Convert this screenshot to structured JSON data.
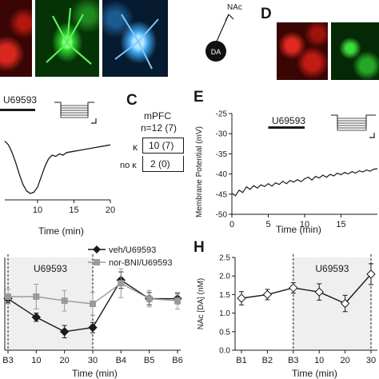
{
  "panels": {
    "C": "C",
    "D": "D",
    "E": "E",
    "H": "H"
  },
  "schematic": {
    "region": "NAc",
    "cell": "DA"
  },
  "panel_c": {
    "region": "mPFC",
    "n": "n=12 (7)",
    "rows": [
      {
        "label": "κ",
        "value": "10 (7)"
      },
      {
        "label": "no κ",
        "value": "2 (0)"
      }
    ]
  },
  "chart_data": [
    {
      "id": "panel-b-trace",
      "type": "line",
      "xlabel": "Time (min)",
      "ylabel": "",
      "x_ticks": [
        10,
        15,
        20
      ],
      "drug_label": "U69593",
      "drug_bar": [
        null,
        10
      ],
      "x": [
        5.5,
        6,
        6.5,
        7,
        7.5,
        8,
        8.5,
        9,
        9.5,
        10,
        10.5,
        11,
        11.5,
        12,
        12.5,
        13,
        13.5,
        14,
        15,
        16,
        17,
        18,
        19,
        20
      ],
      "y": [
        0,
        -0.3,
        -0.9,
        -1.7,
        -2.6,
        -3.4,
        -3.9,
        -4.1,
        -4.0,
        -3.6,
        -2.8,
        -2.0,
        -1.4,
        -1.1,
        -1.2,
        -1.0,
        -1.1,
        -0.9,
        -0.8,
        -0.7,
        -0.6,
        -0.5,
        -0.4,
        -0.3
      ]
    },
    {
      "id": "panel-e-trace",
      "type": "line",
      "xlabel": "Time (min)",
      "ylabel": "Membrane Potential (mV)",
      "xlim": [
        0,
        20
      ],
      "ylim": [
        -50,
        -25
      ],
      "x_ticks": [
        0,
        5,
        10,
        15
      ],
      "y_ticks": [
        -50,
        -45,
        -40,
        -35,
        -30,
        -25
      ],
      "drug_label": "U69593",
      "drug_bar": [
        5,
        10
      ],
      "x": [
        0,
        0.5,
        1,
        1.5,
        2,
        2.5,
        3,
        3.5,
        4,
        4.5,
        5,
        5.5,
        6,
        6.5,
        7,
        7.5,
        8,
        8.5,
        9,
        9.5,
        10,
        10.5,
        11,
        11.5,
        12,
        12.5,
        13,
        13.5,
        14,
        14.5,
        15,
        15.5,
        16,
        16.5,
        17,
        17.5,
        18,
        18.5,
        19,
        19.5,
        20
      ],
      "y": [
        -44.8,
        -45.4,
        -44.0,
        -44.6,
        -43.2,
        -43.8,
        -42.9,
        -43.5,
        -42.7,
        -43.1,
        -42.4,
        -43.0,
        -42.2,
        -42.6,
        -41.8,
        -42.4,
        -41.6,
        -42.0,
        -41.4,
        -41.9,
        -41.2,
        -40.8,
        -41.5,
        -40.6,
        -41.0,
        -40.3,
        -40.8,
        -40.1,
        -40.5,
        -39.8,
        -40.2,
        -39.6,
        -40.0,
        -39.4,
        -39.8,
        -39.2,
        -39.5,
        -39.0,
        -39.3,
        -38.8,
        -38.7
      ]
    },
    {
      "id": "panel-g",
      "type": "line",
      "xlabel": "Time (min)",
      "ylabel": "",
      "categories": [
        "B3",
        "10",
        "20",
        "30",
        "B4",
        "B5",
        "B6"
      ],
      "drug_label": "U69593",
      "shaded_range": [
        "B3",
        "30"
      ],
      "series": [
        {
          "name": "veh/U69593",
          "color": "#1a1a1a",
          "marker": "diamond",
          "values": [
            100,
            82,
            68,
            72,
            118,
            100,
            100
          ],
          "error": [
            4,
            4,
            6,
            5,
            8,
            6,
            5
          ]
        },
        {
          "name": "nor-BNI/U69593",
          "color": "#9a9a9a",
          "marker": "square",
          "values": [
            102,
            102,
            98,
            95,
            115,
            100,
            98
          ],
          "error": [
            7,
            12,
            10,
            11,
            14,
            8,
            8
          ]
        }
      ]
    },
    {
      "id": "panel-h",
      "type": "line",
      "xlabel": "Time (min)",
      "ylabel": "NAc [DA] (nM)",
      "ylim": [
        0,
        2.5
      ],
      "y_ticks": [
        0.0,
        0.5,
        1.0,
        1.5,
        2.0,
        2.5
      ],
      "y_tick_labels": [
        "0.0",
        "0.5",
        "1.0",
        "1.5",
        "2.0",
        "2.5"
      ],
      "categories": [
        "B1",
        "B2",
        "B3",
        "10",
        "20",
        "30"
      ],
      "drug_label": "U69593",
      "shaded_range": [
        "B3",
        "30"
      ],
      "series": [
        {
          "name": "",
          "marker": "open-diamond",
          "values": [
            1.4,
            1.5,
            1.68,
            1.57,
            1.26,
            2.05
          ],
          "error": [
            0.18,
            0.14,
            0.14,
            0.22,
            0.22,
            0.28
          ]
        }
      ]
    }
  ]
}
